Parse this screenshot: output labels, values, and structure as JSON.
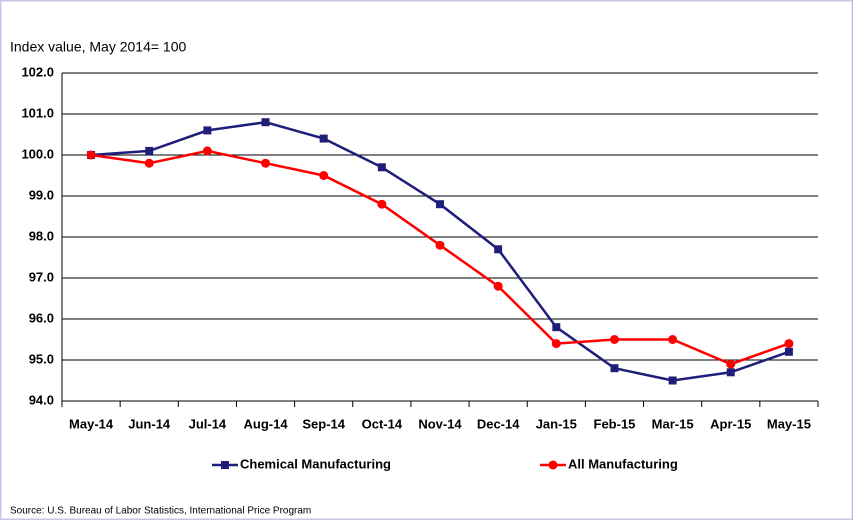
{
  "chart_data": {
    "type": "line",
    "title": "Index value, May 2014= 100",
    "categories": [
      "May-14",
      "Jun-14",
      "Jul-14",
      "Aug-14",
      "Sep-14",
      "Oct-14",
      "Nov-14",
      "Dec-14",
      "Jan-15",
      "Feb-15",
      "Mar-15",
      "Apr-15",
      "May-15"
    ],
    "series": [
      {
        "name": "Chemical Manufacturing",
        "color": "#1f1f7a",
        "marker": "square",
        "values": [
          100.0,
          100.1,
          100.6,
          100.8,
          100.4,
          99.7,
          98.8,
          97.7,
          95.8,
          94.8,
          94.5,
          94.7,
          95.2
        ]
      },
      {
        "name": "All Manufacturing",
        "color": "#ff0000",
        "marker": "circle",
        "values": [
          100.0,
          99.8,
          100.1,
          99.8,
          99.5,
          98.8,
          97.8,
          96.8,
          95.4,
          95.5,
          95.5,
          94.9,
          95.4
        ]
      }
    ],
    "ylim": [
      94,
      102
    ],
    "yticks": [
      {
        "value": 94,
        "label": "94.0"
      },
      {
        "value": 95,
        "label": "95.0"
      },
      {
        "value": 96,
        "label": "96.0"
      },
      {
        "value": 97,
        "label": "97.0"
      },
      {
        "value": 98,
        "label": "98.0"
      },
      {
        "value": 99,
        "label": "99.0"
      },
      {
        "value": 100,
        "label": "100.0"
      },
      {
        "value": 101,
        "label": "101.0"
      },
      {
        "value": 102,
        "label": "102.0"
      }
    ],
    "grid": true,
    "legend": "bottom",
    "source": "Source: U.S. Bureau of Labor Statistics, International Price Program"
  }
}
